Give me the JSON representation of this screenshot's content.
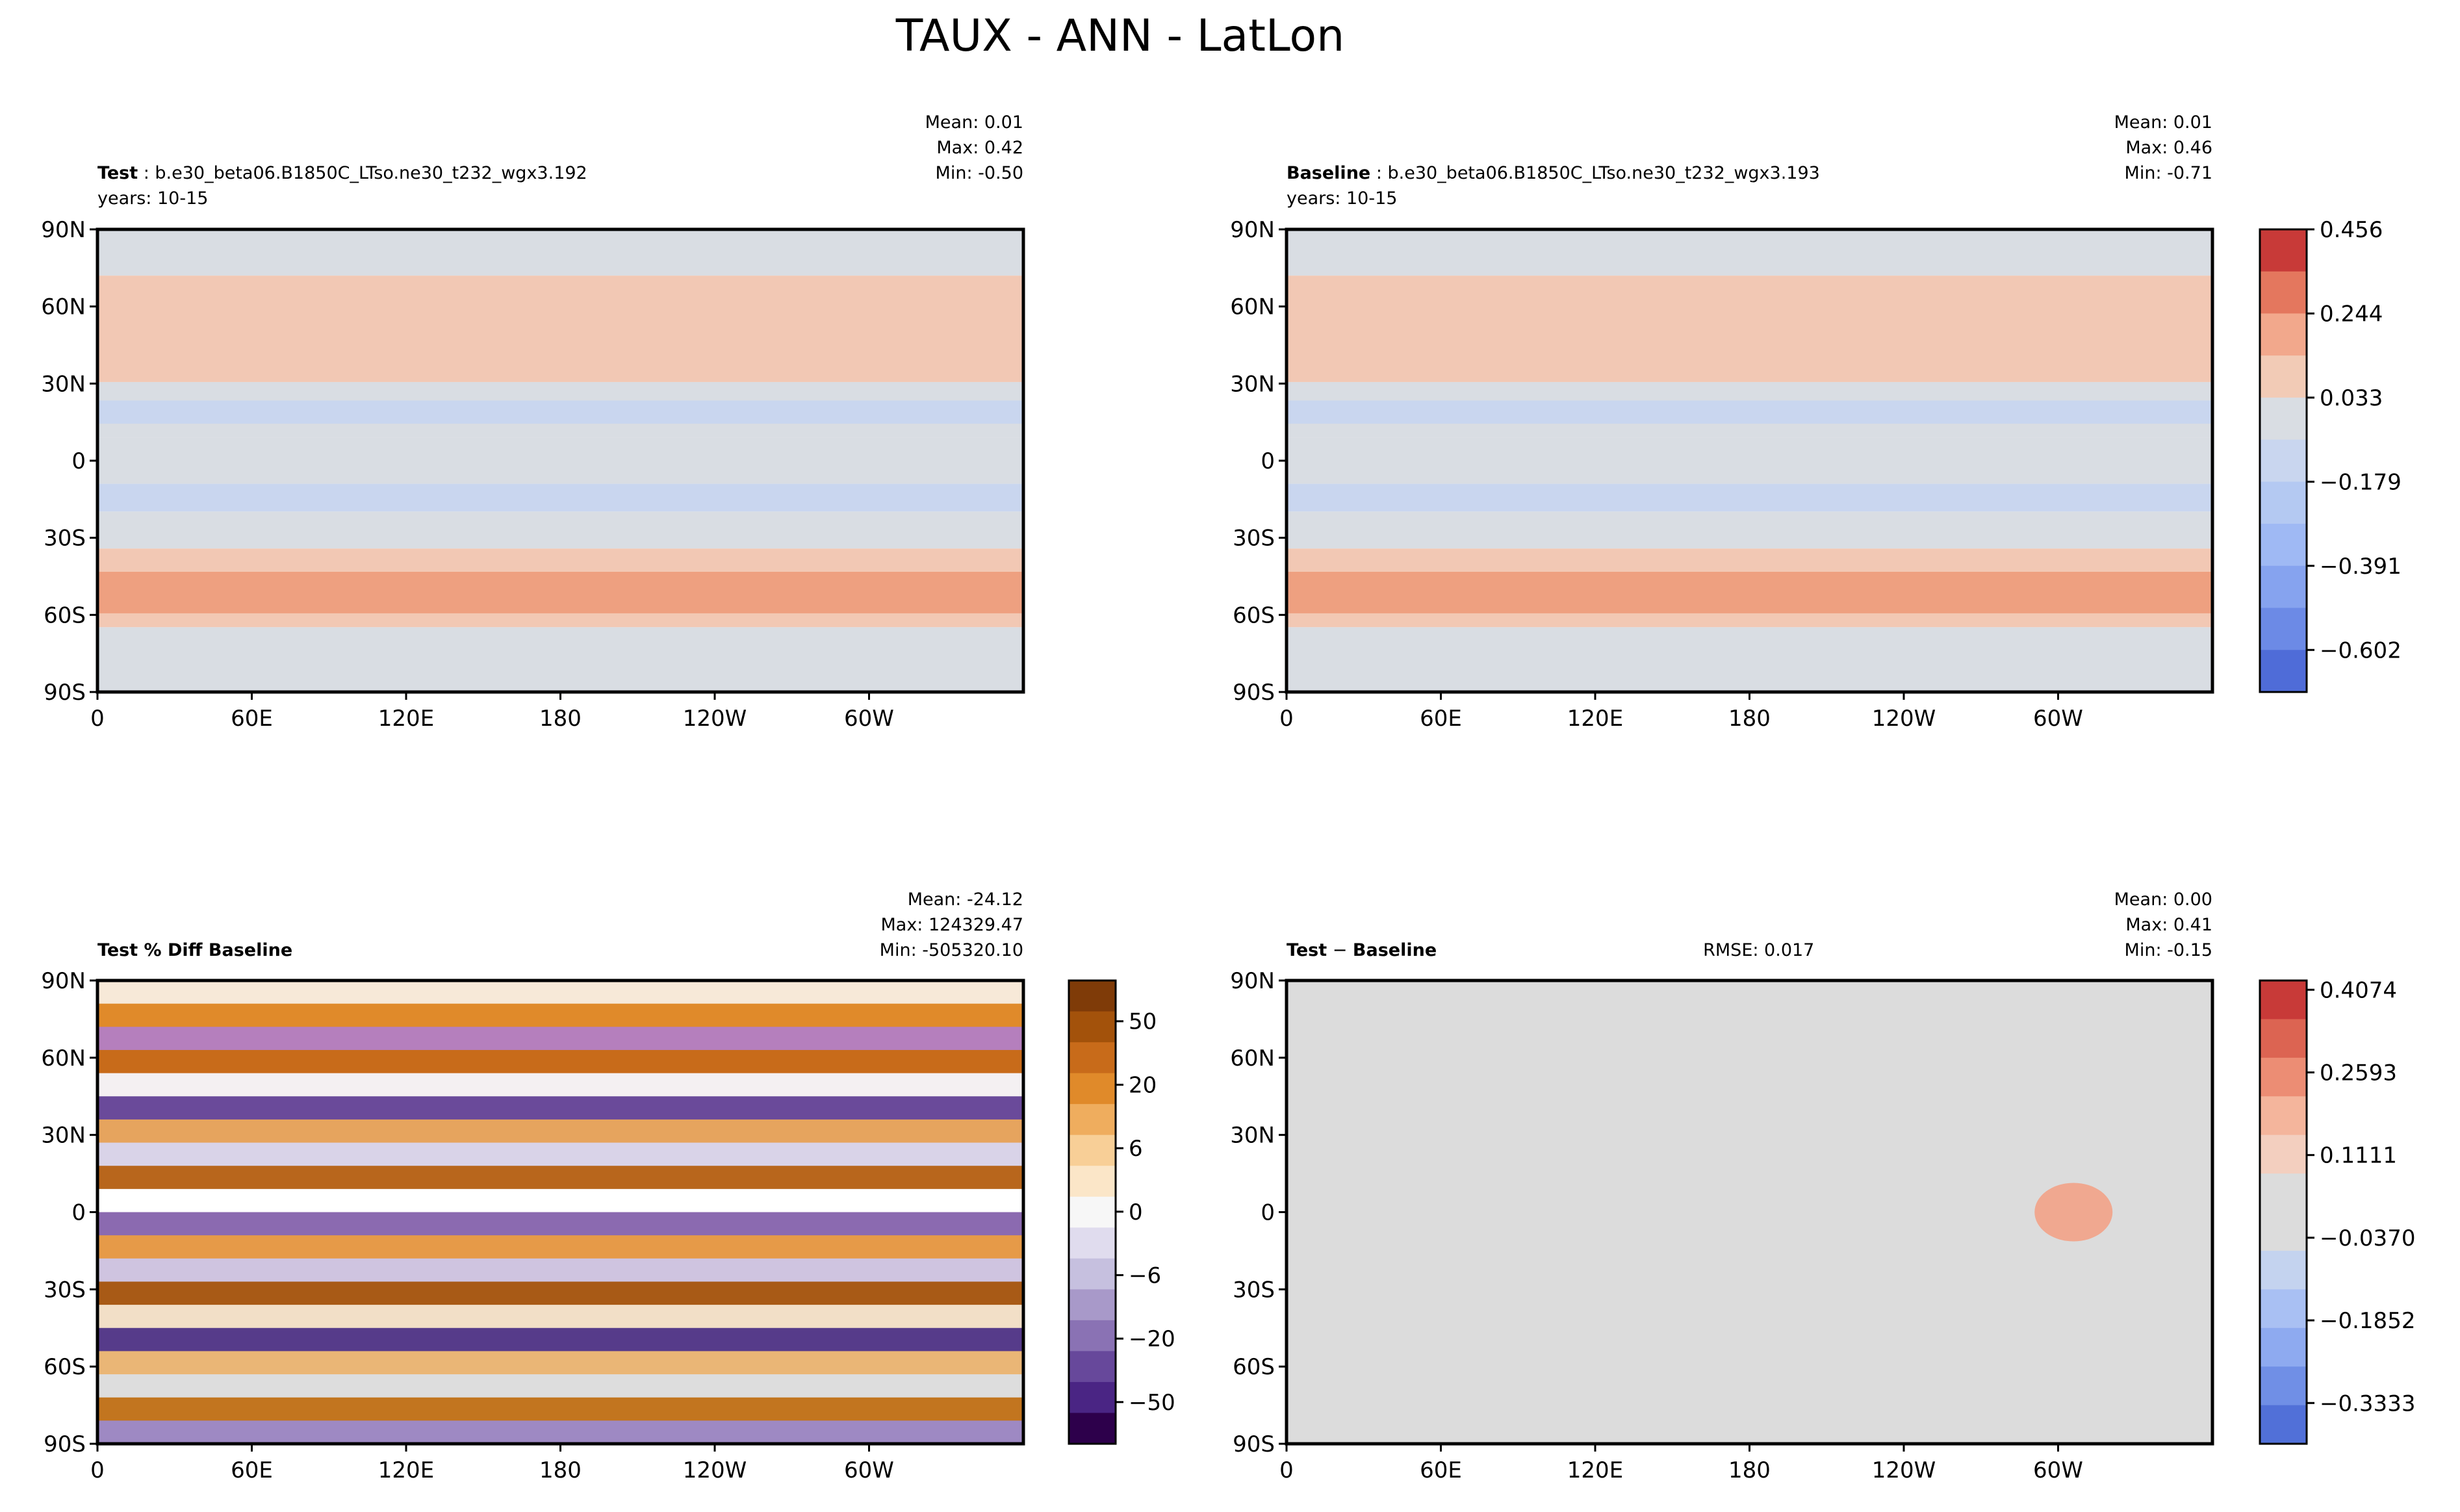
{
  "title": "TAUX - ANN - LatLon",
  "panels": [
    {
      "title": [
        {
          "text": "Test",
          "bold": true
        },
        {
          "text": " : b.e30_beta06.B1850C_LTso.ne30_t232_wgx3.192",
          "bold": false
        }
      ],
      "years": "years: 10-15",
      "stats": [
        "Mean:  0.01",
        "Max:  0.42",
        "Min: -0.50"
      ],
      "kind": "field"
    },
    {
      "title": [
        {
          "text": "Baseline",
          "bold": true
        },
        {
          "text": " : b.e30_beta06.B1850C_LTso.ne30_t232_wgx3.193",
          "bold": false
        }
      ],
      "years": "years: 10-15",
      "stats": [
        "Mean:  0.01",
        "Max:  0.46",
        "Min: -0.71"
      ],
      "kind": "field"
    },
    {
      "title": [
        {
          "text": "Test % Diff Baseline",
          "bold": true
        }
      ],
      "stats": [
        "Mean: -24.12",
        "Max: 124329.47",
        "Min: -505320.10"
      ],
      "kind": "pct"
    },
    {
      "title": [
        {
          "text": "Test",
          "bold": true
        },
        {
          "text": " − ",
          "bold": false
        },
        {
          "text": "Baseline",
          "bold": true
        }
      ],
      "rmse": "RMSE: 0.017",
      "stats": [
        "Mean:  0.00",
        "Max:  0.41",
        "Min: -0.15"
      ],
      "kind": "diff"
    }
  ],
  "xticks": [
    "0",
    "60E",
    "120E",
    "180",
    "120W",
    "60W"
  ],
  "yticks": [
    "90N",
    "60N",
    "30N",
    "0",
    "30S",
    "60S",
    "90S"
  ],
  "colorbars": [
    {
      "panel": 1,
      "ticks": [
        "0.456",
        "0.244",
        "0.033",
        "−0.179",
        "−0.391",
        "−0.602"
      ]
    },
    {
      "panel": 2,
      "ticks": [
        "50",
        "20",
        "6",
        "0",
        "−6",
        "−20",
        "−50"
      ]
    },
    {
      "panel": 3,
      "ticks": [
        "0.4074",
        "0.2593",
        "0.1111",
        "−0.0370",
        "−0.1852",
        "−0.3333"
      ]
    }
  ]
}
